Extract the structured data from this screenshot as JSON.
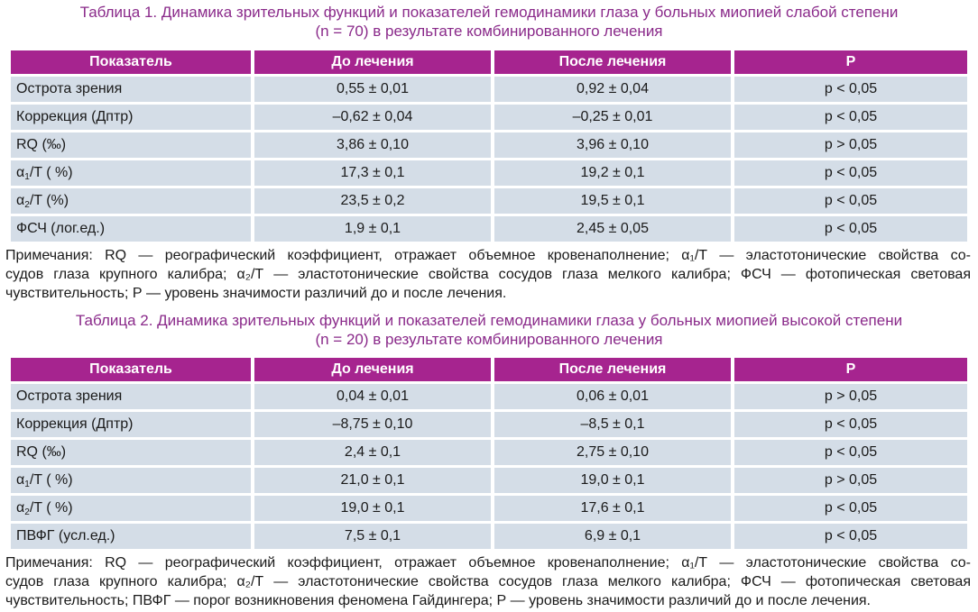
{
  "table1": {
    "caption_line1": "Таблица 1.  Динамика зрительных функций и показателей гемодинамики глаза у больных миопией слабой степени",
    "caption_line2": "(n = 70) в результате комбинированного лечения",
    "headers": [
      "Показатель",
      "До лечения",
      "После лечения",
      "P"
    ],
    "rows": [
      {
        "label": "Острота зрения",
        "label_sub": "",
        "label_after": "",
        "before": "0,55 ± 0,01",
        "after": "0,92 ± 0,04",
        "p": "p < 0,05"
      },
      {
        "label": "Коррекция (Дптр)",
        "label_sub": "",
        "label_after": "",
        "before": "–0,62 ± 0,04",
        "after": "–0,25 ± 0,01",
        "p": "p < 0,05"
      },
      {
        "label": "RQ (‰)",
        "label_sub": "",
        "label_after": "",
        "before": "3,86 ± 0,10",
        "after": "3,96 ± 0,10",
        "p": "p > 0,05"
      },
      {
        "label": "α",
        "label_sub": "1",
        "label_after": "/T ( %)",
        "before": "17,3 ± 0,1",
        "after": "19,2 ± 0,1",
        "p": "p < 0,05"
      },
      {
        "label": "α",
        "label_sub": "2",
        "label_after": "/T (%)",
        "before": "23,5 ± 0,2",
        "after": "19,5 ± 0,1",
        "p": "p < 0,05"
      },
      {
        "label": "ФСЧ (лог.ед.)",
        "label_sub": "",
        "label_after": "",
        "before": "1,9 ± 0,1",
        "after": "2,45 ± 0,05",
        "p": "p < 0,05"
      }
    ],
    "note_line1": "Примечания:  RQ — реографический коэффициент, отражает объемное кровенаполнение; α₁/Т — эластотонические свойства со-",
    "note_line2": "судов глаза крупного калибра; α₂/Т — эластотонические свойства сосудов глаза мелкого калибра; ФСЧ — фотопическая световая",
    "note_line3": "чувствительность; Р — уровень значимости различий до и после лечения."
  },
  "table2": {
    "caption_line1": "Таблица 2.  Динамика зрительных функций и показателей гемодинамики глаза у больных миопией высокой степени",
    "caption_line2": "(n = 20) в результате комбинированного лечения",
    "headers": [
      "Показатель",
      "До лечения",
      "После лечения",
      "P"
    ],
    "rows": [
      {
        "label": "Острота зрения",
        "label_sub": "",
        "label_after": "",
        "before": "0,04 ± 0,01",
        "after": "0,06 ± 0,01",
        "p": "p > 0,05"
      },
      {
        "label": "Коррекция (Дптр)",
        "label_sub": "",
        "label_after": "",
        "before": "–8,75 ± 0,10",
        "after": "–8,5 ± 0,1",
        "p": "p < 0,05"
      },
      {
        "label": "RQ (‰)",
        "label_sub": "",
        "label_after": "",
        "before": "2,4 ± 0,1",
        "after": "2,75 ± 0,10",
        "p": "p < 0,05"
      },
      {
        "label": "α",
        "label_sub": "1",
        "label_after": "/T ( %)",
        "before": "21,0 ± 0,1",
        "after": "19,0 ± 0,1",
        "p": "p > 0,05"
      },
      {
        "label": "α",
        "label_sub": "2",
        "label_after": "/T ( %)",
        "before": "19,0 ± 0,1",
        "after": "17,6 ± 0,1",
        "p": "p < 0,05"
      },
      {
        "label": "ПВФГ (усл.ед.)",
        "label_sub": "",
        "label_after": "",
        "before": "7,5 ± 0,1",
        "after": "6,9 ± 0,1",
        "p": "p < 0,05"
      }
    ],
    "note_line1": "Примечания:  RQ — реографический коэффициент, отражает объемное кровенаполнение; α₁/Т — эластотонические свойства со-",
    "note_line2": "судов глаза крупного калибра; α₂/Т — эластотонические свойства сосудов глаза мелкого калибра; ФСЧ — фотопическая световая",
    "note_line3": "чувствительность; ПВФГ — порог возникновения феномена Гайдингера; Р — уровень значимости различий до и после лечения."
  },
  "colors": {
    "caption": "#8a2a8a",
    "header_bg": "#a6248f",
    "header_text": "#ffffff",
    "cell_bg": "#d4dde7"
  }
}
